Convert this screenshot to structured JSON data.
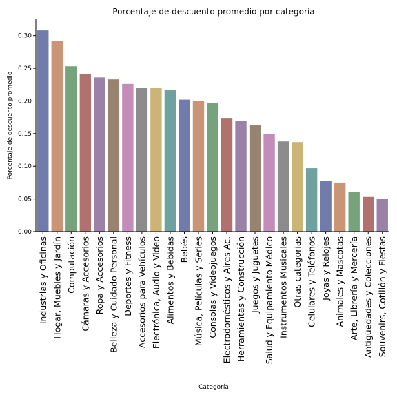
{
  "chart_data": {
    "type": "bar",
    "title": "Porcentaje de descuento promedio por categoría",
    "xlabel": "Categoría",
    "ylabel": "Porcentaje de descuento promedio",
    "ylim": [
      0,
      0.325
    ],
    "yticks": [
      "0.00",
      "0.05",
      "0.10",
      "0.15",
      "0.20",
      "0.25",
      "0.30"
    ],
    "grid": false,
    "categories": [
      "Industrias y Oficinas",
      "Hogar, Muebles y Jardín",
      "Computación",
      "Cámaras y Accesorios",
      "Ropa y Accesorios",
      "Belleza y Cuidado Personal",
      "Deportes y Fitness",
      "Accesorios para Vehículos",
      "Electrónica, Audio y Video",
      "Alimentos y Bebidas",
      "Bebés",
      "Música, Películas y Series",
      "Consolas y Videojuegos",
      "Electrodomésticos y Aires Ac.",
      "Herramientas y Construcción",
      "Juegos y Juguetes",
      "Salud y Equipamiento Médico",
      "Instrumentos Musicales",
      "Otras categorías",
      "Celulares y Teléfonos",
      "Joyas y Relojes",
      "Animales y Mascotas",
      "Arte, Librería y Mercería",
      "Antigüedades y Colecciones",
      "Souvenirs, Cotillón y Fiestas"
    ],
    "values": [
      0.308,
      0.292,
      0.253,
      0.241,
      0.236,
      0.233,
      0.226,
      0.22,
      0.22,
      0.217,
      0.202,
      0.2,
      0.197,
      0.174,
      0.169,
      0.163,
      0.149,
      0.138,
      0.137,
      0.097,
      0.077,
      0.075,
      0.061,
      0.053,
      0.05
    ],
    "colors": [
      "#717cab",
      "#c99576",
      "#76a37b",
      "#b1716f",
      "#9b80a8",
      "#978370",
      "#c48cb8",
      "#8c8c8c",
      "#ccb476",
      "#6fa1a1",
      "#717cab",
      "#c99576",
      "#76a37b",
      "#b1716f",
      "#9b80a8",
      "#978370",
      "#c48cb8",
      "#8c8c8c",
      "#ccb476",
      "#6fa1a1",
      "#717cab",
      "#c99576",
      "#76a37b",
      "#b1716f",
      "#9b80a8"
    ]
  }
}
